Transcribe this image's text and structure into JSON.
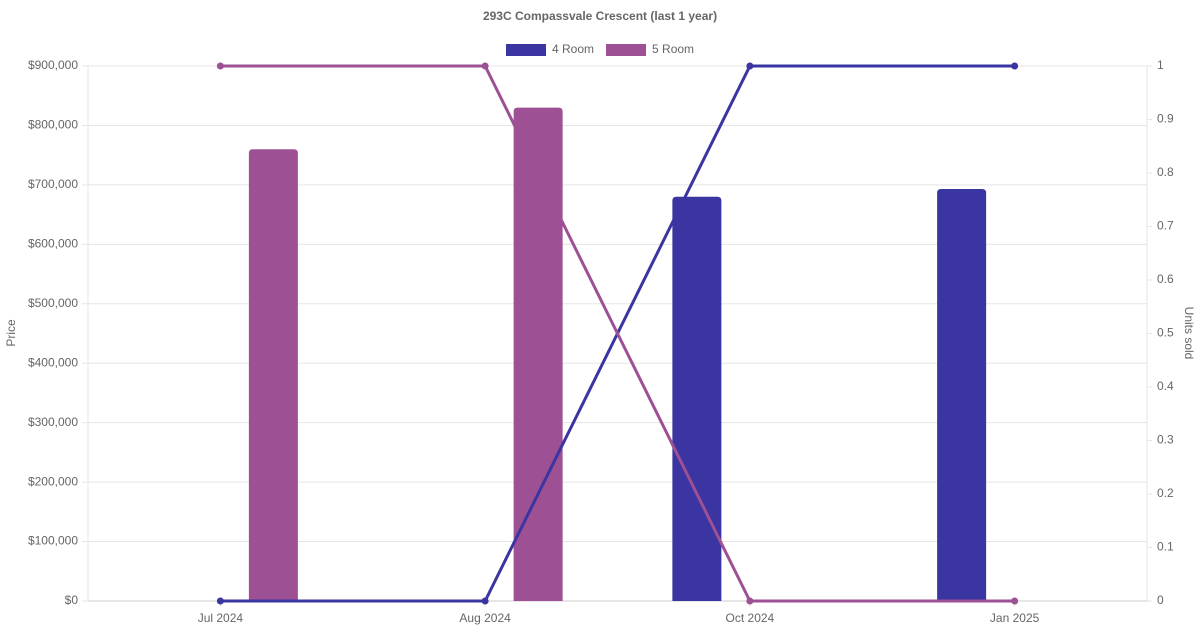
{
  "chart_data": {
    "type": "bar-line",
    "title": "293C Compassvale Crescent (last 1 year)",
    "ylabel": "Price",
    "y2label": "Units sold",
    "categories": [
      "Jul 2024",
      "Aug 2024",
      "Oct 2024",
      "Jan 2025"
    ],
    "series": [
      {
        "name": "4 Room",
        "color": "#3a35a0",
        "values": [
          null,
          null,
          680000,
          693000
        ],
        "units": [
          0,
          0,
          1,
          1
        ]
      },
      {
        "name": "5 Room",
        "color": "#9e5094",
        "values": [
          760000,
          830000,
          null,
          null
        ],
        "units": [
          1,
          1,
          0,
          0
        ]
      }
    ],
    "ylim": [
      0,
      900000
    ],
    "yticks": [
      {
        "value": 0,
        "label": "$0"
      },
      {
        "value": 100000,
        "label": "$100,000"
      },
      {
        "value": 200000,
        "label": "$200,000"
      },
      {
        "value": 300000,
        "label": "$300,000"
      },
      {
        "value": 400000,
        "label": "$400,000"
      },
      {
        "value": 500000,
        "label": "$500,000"
      },
      {
        "value": 600000,
        "label": "$600,000"
      },
      {
        "value": 700000,
        "label": "$700,000"
      },
      {
        "value": 800000,
        "label": "$800,000"
      },
      {
        "value": 900000,
        "label": "$900,000"
      }
    ],
    "y2lim": [
      0,
      1
    ],
    "y2ticks": [
      0,
      0.1,
      0.2,
      0.3,
      0.4,
      0.5,
      0.6,
      0.7,
      0.8,
      0.9,
      1
    ],
    "grid": true
  }
}
